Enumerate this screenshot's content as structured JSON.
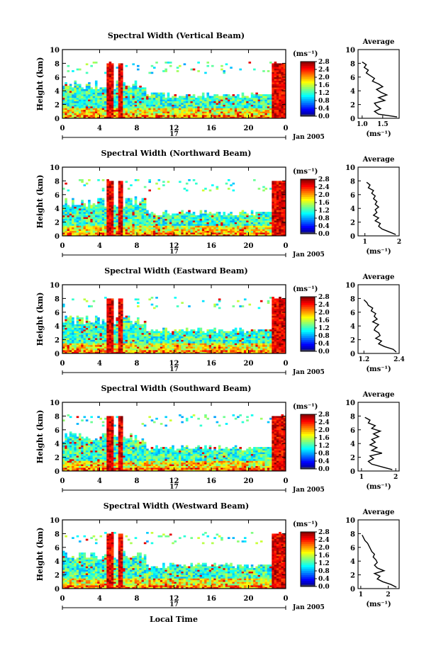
{
  "figure": {
    "xlabel_bottom": "Local Time",
    "date_label": "Jan 2005",
    "day_label": "17"
  },
  "chart_data": [
    {
      "type": "heatmap",
      "title": "Spectral Width (Vertical Beam)",
      "ylabel": "Height (km)",
      "ylim": [
        0,
        10
      ],
      "yticks": [
        "0",
        "2",
        "4",
        "6",
        "8",
        "10"
      ],
      "xlim": [
        0,
        24
      ],
      "xticks": [
        "0",
        "4",
        "8",
        "12",
        "16",
        "20",
        "0"
      ],
      "colorbar": {
        "unit": "(ms⁻¹)",
        "range": [
          0.0,
          2.8
        ],
        "ticks": [
          "0.0",
          "0.4",
          "0.8",
          "1.2",
          "1.6",
          "2.0",
          "2.4",
          "2.8"
        ]
      },
      "average_profile": {
        "title": "Average",
        "xlabel": "(ms⁻¹)",
        "xlim": [
          0.9,
          1.9
        ],
        "xticks": [
          "1.0",
          "1.5"
        ],
        "ylim": [
          0,
          10
        ],
        "yticks": [
          "0",
          "2",
          "4",
          "6",
          "8",
          "10"
        ],
        "height": [
          0.2,
          0.6,
          1.0,
          1.4,
          1.8,
          2.2,
          2.6,
          3.0,
          3.4,
          3.8,
          4.2,
          4.6,
          5.0,
          5.4,
          5.8,
          6.2,
          6.6,
          7.0,
          7.4,
          7.8,
          8.2
        ],
        "value": [
          1.85,
          1.4,
          1.3,
          1.45,
          1.35,
          1.3,
          1.55,
          1.4,
          1.6,
          1.45,
          1.35,
          1.5,
          1.4,
          1.25,
          1.3,
          1.2,
          1.1,
          1.15,
          1.05,
          1.1,
          1.0
        ]
      }
    },
    {
      "type": "heatmap",
      "title": "Spectral Width (Northward Beam)",
      "ylabel": "Height (km)",
      "ylim": [
        0,
        10
      ],
      "yticks": [
        "0",
        "2",
        "4",
        "6",
        "8",
        "10"
      ],
      "xlim": [
        0,
        24
      ],
      "xticks": [
        "0",
        "4",
        "8",
        "12",
        "16",
        "20",
        "0"
      ],
      "colorbar": {
        "unit": "(ms⁻¹)",
        "range": [
          0.0,
          2.8
        ],
        "ticks": [
          "0.0",
          "0.4",
          "0.8",
          "1.2",
          "1.6",
          "2.0",
          "2.4",
          "2.8"
        ]
      },
      "average_profile": {
        "title": "Average",
        "xlabel": "(ms⁻¹)",
        "xlim": [
          0.8,
          2.0
        ],
        "xticks": [
          "1",
          "2"
        ],
        "ylim": [
          0,
          10
        ],
        "yticks": [
          "0",
          "2",
          "4",
          "6",
          "8",
          "10"
        ],
        "height": [
          0.2,
          0.6,
          1.0,
          1.4,
          1.8,
          2.2,
          2.6,
          3.0,
          3.4,
          3.8,
          4.2,
          4.6,
          5.0,
          5.4,
          5.8,
          6.2,
          6.6,
          7.0,
          7.4,
          7.8
        ],
        "value": [
          1.9,
          1.7,
          1.5,
          1.4,
          1.45,
          1.3,
          1.4,
          1.25,
          1.35,
          1.3,
          1.4,
          1.3,
          1.35,
          1.25,
          1.3,
          1.2,
          1.25,
          1.1,
          1.15,
          1.05
        ]
      }
    },
    {
      "type": "heatmap",
      "title": "Spectral Width (Eastward Beam)",
      "ylabel": "Height (km)",
      "ylim": [
        0,
        10
      ],
      "yticks": [
        "0",
        "2",
        "4",
        "6",
        "8",
        "10"
      ],
      "xlim": [
        0,
        24
      ],
      "xticks": [
        "0",
        "4",
        "8",
        "12",
        "16",
        "20",
        "0"
      ],
      "colorbar": {
        "unit": "(ms⁻¹)",
        "range": [
          0.0,
          2.8
        ],
        "ticks": [
          "0.0",
          "0.4",
          "0.8",
          "1.2",
          "1.6",
          "2.0",
          "2.4",
          "2.8"
        ]
      },
      "average_profile": {
        "title": "Average",
        "xlabel": "(ms⁻¹)",
        "xlim": [
          1.0,
          2.4
        ],
        "xticks": [
          "1.2",
          "2.4"
        ],
        "ylim": [
          0,
          10
        ],
        "yticks": [
          "0",
          "2",
          "4",
          "6",
          "8",
          "10"
        ],
        "height": [
          0.2,
          0.6,
          1.0,
          1.4,
          1.8,
          2.2,
          2.6,
          3.0,
          3.4,
          3.8,
          4.2,
          4.6,
          5.0,
          5.4,
          5.8,
          6.2,
          6.6,
          7.0,
          7.4,
          7.8
        ],
        "value": [
          2.3,
          2.2,
          1.9,
          1.7,
          1.8,
          1.6,
          1.75,
          1.7,
          1.55,
          1.6,
          1.7,
          1.5,
          1.65,
          1.55,
          1.6,
          1.45,
          1.5,
          1.35,
          1.3,
          1.2
        ]
      }
    },
    {
      "type": "heatmap",
      "title": "Spectral Width (Southward Beam)",
      "ylabel": "Height (km)",
      "ylim": [
        0,
        10
      ],
      "yticks": [
        "0",
        "2",
        "4",
        "6",
        "8",
        "10"
      ],
      "xlim": [
        0,
        24
      ],
      "xticks": [
        "0",
        "4",
        "8",
        "12",
        "16",
        "20",
        "0"
      ],
      "colorbar": {
        "unit": "(ms⁻¹)",
        "range": [
          0.0,
          2.8
        ],
        "ticks": [
          "0.0",
          "0.4",
          "0.8",
          "1.2",
          "1.6",
          "2.0",
          "2.4",
          "2.8"
        ]
      },
      "average_profile": {
        "title": "Average",
        "xlabel": "(ms⁻¹)",
        "xlim": [
          0.9,
          2.1
        ],
        "xticks": [
          "1",
          "2"
        ],
        "ylim": [
          0,
          10
        ],
        "yticks": [
          "0",
          "2",
          "4",
          "6",
          "8",
          "10"
        ],
        "height": [
          0.2,
          0.6,
          1.0,
          1.4,
          1.8,
          2.2,
          2.6,
          3.0,
          3.4,
          3.8,
          4.2,
          4.6,
          5.0,
          5.4,
          5.8,
          6.2,
          6.6,
          7.0,
          7.4,
          7.8
        ],
        "value": [
          1.9,
          1.6,
          1.3,
          1.2,
          1.35,
          1.25,
          1.6,
          1.3,
          1.45,
          1.25,
          1.4,
          1.3,
          1.5,
          1.35,
          1.55,
          1.3,
          1.4,
          1.2,
          1.25,
          1.1
        ]
      }
    },
    {
      "type": "heatmap",
      "title": "Spectral Width (Westward Beam)",
      "ylabel": "Height (km)",
      "ylim": [
        0,
        10
      ],
      "yticks": [
        "0",
        "2",
        "4",
        "6",
        "8",
        "10"
      ],
      "xlim": [
        0,
        24
      ],
      "xticks": [
        "0",
        "4",
        "8",
        "12",
        "16",
        "20",
        "0"
      ],
      "colorbar": {
        "unit": "(ms⁻¹)",
        "range": [
          0.0,
          2.8
        ],
        "ticks": [
          "0.0",
          "0.4",
          "0.8",
          "1.2",
          "1.6",
          "2.0",
          "2.4",
          "2.8"
        ]
      },
      "average_profile": {
        "title": "Average",
        "xlabel": "(ms⁻¹)",
        "xlim": [
          0.9,
          2.4
        ],
        "xticks": [
          "1",
          "2"
        ],
        "ylim": [
          0,
          10
        ],
        "yticks": [
          "0",
          "2",
          "4",
          "6",
          "8",
          "10"
        ],
        "height": [
          0.2,
          0.6,
          1.0,
          1.4,
          1.8,
          2.2,
          2.6,
          3.0,
          3.4,
          3.8,
          4.2,
          4.6,
          5.0,
          5.4,
          5.8,
          6.2,
          6.6,
          7.0,
          7.4,
          7.8
        ],
        "value": [
          2.3,
          2.1,
          1.8,
          1.6,
          1.7,
          1.5,
          1.85,
          1.6,
          1.5,
          1.6,
          1.55,
          1.45,
          1.5,
          1.4,
          1.35,
          1.3,
          1.25,
          1.15,
          1.1,
          1.05
        ]
      }
    }
  ]
}
